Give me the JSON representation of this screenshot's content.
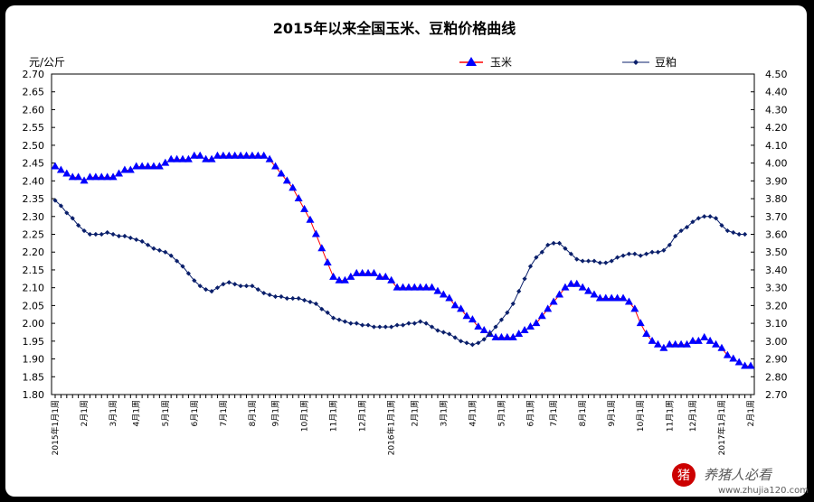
{
  "chart_data": {
    "type": "line",
    "title": "2015年以来全国玉米、豆粕价格曲线",
    "y_unit": "元/公斤",
    "y_left": {
      "min": 1.8,
      "max": 2.7,
      "step": 0.05,
      "ticks": [
        "1.80",
        "1.85",
        "1.90",
        "1.95",
        "2.00",
        "2.05",
        "2.10",
        "2.15",
        "2.20",
        "2.25",
        "2.30",
        "2.35",
        "2.40",
        "2.45",
        "2.50",
        "2.55",
        "2.60",
        "2.65",
        "2.70"
      ]
    },
    "y_right": {
      "min": 2.7,
      "max": 4.5,
      "step": 0.1,
      "ticks": [
        "2.70",
        "2.80",
        "2.90",
        "3.00",
        "3.10",
        "3.20",
        "3.30",
        "3.40",
        "3.50",
        "3.60",
        "3.70",
        "3.80",
        "3.90",
        "4.00",
        "4.10",
        "4.20",
        "4.30",
        "4.40",
        "4.50"
      ]
    },
    "x_labels": [
      "2015年1月1周",
      "2月1周",
      "3月1周",
      "4月1周",
      "5月1周",
      "6月1周",
      "7月1周",
      "8月1周",
      "9月1周",
      "10月1周",
      "11月1周",
      "12月1周",
      "2016年1月1周",
      "2月1周",
      "3月1周",
      "4月1周",
      "5月1周",
      "6月1周",
      "7月1周",
      "8月1周",
      "9月1周",
      "10月1周",
      "11月1周",
      "12月1周",
      "2017年1月1周",
      "2月1周"
    ],
    "legend_position": "top",
    "grid": false,
    "series": [
      {
        "name": "玉米",
        "axis": "left",
        "color": "#0000ff",
        "line_color": "#ff0000",
        "marker": "triangle",
        "values": [
          2.44,
          2.43,
          2.42,
          2.41,
          2.41,
          2.4,
          2.41,
          2.41,
          2.41,
          2.41,
          2.41,
          2.42,
          2.43,
          2.43,
          2.44,
          2.44,
          2.44,
          2.44,
          2.44,
          2.45,
          2.46,
          2.46,
          2.46,
          2.46,
          2.47,
          2.47,
          2.46,
          2.46,
          2.47,
          2.47,
          2.47,
          2.47,
          2.47,
          2.47,
          2.47,
          2.47,
          2.47,
          2.46,
          2.44,
          2.42,
          2.4,
          2.38,
          2.35,
          2.32,
          2.29,
          2.25,
          2.21,
          2.17,
          2.13,
          2.12,
          2.12,
          2.13,
          2.14,
          2.14,
          2.14,
          2.14,
          2.13,
          2.13,
          2.12,
          2.1,
          2.1,
          2.1,
          2.1,
          2.1,
          2.1,
          2.1,
          2.09,
          2.08,
          2.07,
          2.05,
          2.04,
          2.02,
          2.01,
          1.99,
          1.98,
          1.97,
          1.96,
          1.96,
          1.96,
          1.96,
          1.97,
          1.98,
          1.99,
          2.0,
          2.02,
          2.04,
          2.06,
          2.08,
          2.1,
          2.11,
          2.11,
          2.1,
          2.09,
          2.08,
          2.07,
          2.07,
          2.07,
          2.07,
          2.07,
          2.06,
          2.04,
          2.0,
          1.97,
          1.95,
          1.94,
          1.93,
          1.94,
          1.94,
          1.94,
          1.94,
          1.95,
          1.95,
          1.96,
          1.95,
          1.94,
          1.93,
          1.91,
          1.9,
          1.89,
          1.88,
          1.88
        ]
      },
      {
        "name": "豆粕",
        "axis": "right",
        "color": "#0a1f6b",
        "line_color": "#0a1f6b",
        "marker": "diamond",
        "values": [
          3.79,
          3.76,
          3.72,
          3.69,
          3.65,
          3.62,
          3.6,
          3.6,
          3.6,
          3.61,
          3.6,
          3.59,
          3.59,
          3.58,
          3.57,
          3.56,
          3.54,
          3.52,
          3.51,
          3.5,
          3.48,
          3.45,
          3.42,
          3.38,
          3.34,
          3.31,
          3.29,
          3.28,
          3.3,
          3.32,
          3.33,
          3.32,
          3.31,
          3.31,
          3.31,
          3.29,
          3.27,
          3.26,
          3.25,
          3.25,
          3.24,
          3.24,
          3.24,
          3.23,
          3.22,
          3.21,
          3.18,
          3.16,
          3.13,
          3.12,
          3.11,
          3.1,
          3.1,
          3.09,
          3.09,
          3.08,
          3.08,
          3.08,
          3.08,
          3.09,
          3.09,
          3.1,
          3.1,
          3.11,
          3.1,
          3.08,
          3.06,
          3.05,
          3.04,
          3.02,
          3.0,
          2.99,
          2.98,
          2.99,
          3.01,
          3.04,
          3.08,
          3.12,
          3.16,
          3.21,
          3.28,
          3.35,
          3.42,
          3.47,
          3.5,
          3.54,
          3.55,
          3.55,
          3.52,
          3.49,
          3.46,
          3.45,
          3.45,
          3.45,
          3.44,
          3.44,
          3.45,
          3.47,
          3.48,
          3.49,
          3.49,
          3.48,
          3.49,
          3.5,
          3.5,
          3.51,
          3.54,
          3.59,
          3.62,
          3.64,
          3.67,
          3.69,
          3.7,
          3.7,
          3.69,
          3.65,
          3.62,
          3.61,
          3.6,
          3.6
        ]
      }
    ]
  },
  "watermark": {
    "logo_text": "猪",
    "brand": "养猪人必看",
    "url": "www.zhujia120.com",
    "brand_color": "#cc0000"
  }
}
